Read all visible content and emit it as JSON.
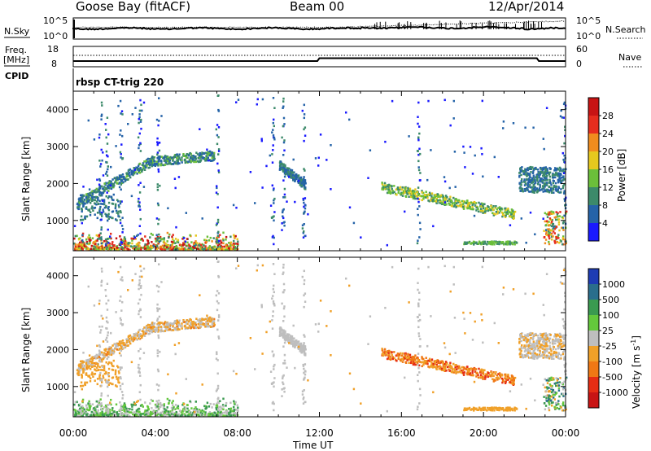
{
  "header": {
    "station": "Goose Bay (fitACF)",
    "beam": "Beam 00",
    "date": "12/Apr/2014"
  },
  "noise_panel": {
    "left_label": "N.Sky",
    "right_label": "N.Search",
    "y_top_tick": "10^5",
    "y_bottom_tick": "10^0"
  },
  "freq_panel": {
    "left_label_line1": "Freq.",
    "left_label_line2": "[MHz]",
    "right_label": "Nave",
    "left_ticks": [
      "18",
      "8"
    ],
    "right_ticks": [
      "60",
      "0"
    ]
  },
  "cpid": {
    "label": "CPID",
    "program": "rbsp CT-trig 220"
  },
  "axes": {
    "x_ticks": [
      "00:00",
      "04:00",
      "08:00",
      "12:00",
      "16:00",
      "20:00",
      "00:00"
    ],
    "x_label": "Time UT",
    "y_label": "Slant Range [km]",
    "y_ticks": [
      "1000",
      "2000",
      "3000",
      "4000"
    ]
  },
  "power_colorbar": {
    "label": "Power [dB]",
    "ticks": [
      "4",
      "8",
      "12",
      "16",
      "20",
      "24",
      "28"
    ],
    "colors": [
      "#1a1aff",
      "#2563a8",
      "#3c8a6a",
      "#6bbf3a",
      "#e6c81e",
      "#f08c1e",
      "#e62d1e",
      "#c81414"
    ]
  },
  "velocity_colorbar": {
    "label_main": "Velocity [m s",
    "label_sup": "-1",
    "label_end": "]",
    "ticks": [
      "1000",
      "500",
      "100",
      "25",
      "-25",
      "-100",
      "-500",
      "-1000"
    ],
    "colors": [
      "#1e3cb4",
      "#2a6e8c",
      "#3a9a50",
      "#64c83c",
      "#bebebe",
      "#f0a028",
      "#f07814",
      "#e62d14",
      "#c81414"
    ]
  },
  "chart_data": {
    "type": "heatmap",
    "x_range_hours": [
      0,
      24
    ],
    "y_range_km": [
      180,
      4500
    ],
    "features": [
      {
        "band": "F-region arc",
        "start_h": 0.2,
        "start_km": 1400,
        "peak_h": 3.8,
        "peak_km": 2600,
        "end_h": 6.8,
        "end_km": 2750
      },
      {
        "band": "near-range",
        "range_km": [
          200,
          500
        ],
        "hours": [
          0,
          8
        ]
      },
      {
        "band": "post-noon",
        "start_h": 10.0,
        "start_km": 2500,
        "end_h": 11.3,
        "end_km": 1950
      },
      {
        "band": "afternoon",
        "start_h": 15.0,
        "start_km": 1900,
        "end_h": 21.5,
        "end_km": 1150
      },
      {
        "band": "evening",
        "start_h": 21.7,
        "start_km": 2000,
        "end_h": 23.7,
        "end_km": 2200
      }
    ]
  }
}
